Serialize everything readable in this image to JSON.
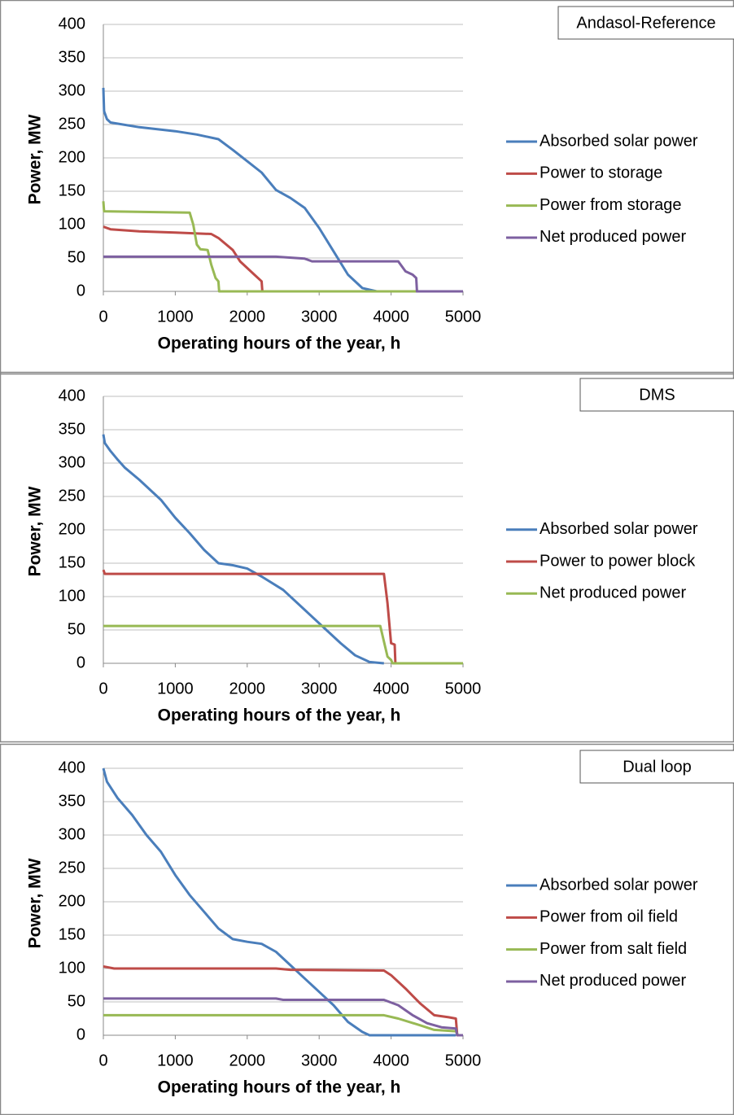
{
  "chart_data": [
    {
      "type": "line",
      "title": "Andasol-Reference",
      "ylabel": "Power, MW",
      "xlabel": "Operating hours of the year, h",
      "xlim": [
        0,
        5000
      ],
      "xticks": [
        0,
        1000,
        2000,
        3000,
        4000,
        5000
      ],
      "ylim": [
        0,
        400
      ],
      "yticks": [
        0,
        50,
        100,
        150,
        200,
        250,
        300,
        350,
        400
      ],
      "grid": true,
      "legend": "right",
      "series": [
        {
          "name": "Absorbed solar power",
          "color": "#4a7ebb",
          "x": [
            0,
            10,
            50,
            100,
            500,
            1000,
            1300,
            1600,
            1800,
            2000,
            2200,
            2300,
            2400,
            2600,
            2800,
            3000,
            3200,
            3400,
            3600,
            3800
          ],
          "values": [
            305,
            270,
            258,
            253,
            246,
            240,
            235,
            228,
            212,
            195,
            178,
            165,
            152,
            140,
            125,
            95,
            60,
            25,
            5,
            0
          ]
        },
        {
          "name": "Power to storage",
          "color": "#be4b48",
          "x": [
            0,
            100,
            500,
            1000,
            1500,
            1600,
            1800,
            1900,
            2100,
            2200,
            2210
          ],
          "values": [
            97,
            93,
            90,
            88,
            86,
            80,
            62,
            45,
            25,
            15,
            0
          ]
        },
        {
          "name": "Power from storage",
          "color": "#98b954",
          "x": [
            0,
            10,
            1200,
            1250,
            1300,
            1350,
            1450,
            1500,
            1560,
            1600,
            1610,
            5000
          ],
          "values": [
            135,
            120,
            118,
            100,
            70,
            63,
            62,
            40,
            20,
            15,
            0,
            0
          ]
        },
        {
          "name": "Net produced power",
          "color": "#7d60a0",
          "x": [
            0,
            2400,
            2800,
            2900,
            4100,
            4200,
            4300,
            4350,
            4360,
            5000
          ],
          "values": [
            52,
            52,
            49,
            45,
            45,
            30,
            25,
            20,
            0,
            0
          ]
        }
      ]
    },
    {
      "type": "line",
      "title": "DMS",
      "ylabel": "Power, MW",
      "xlabel": "Operating hours of the year, h",
      "xlim": [
        0,
        5000
      ],
      "xticks": [
        0,
        1000,
        2000,
        3000,
        4000,
        5000
      ],
      "ylim": [
        0,
        400
      ],
      "yticks": [
        0,
        50,
        100,
        150,
        200,
        250,
        300,
        350,
        400
      ],
      "grid": true,
      "legend": "right",
      "series": [
        {
          "name": "Absorbed solar power",
          "color": "#4a7ebb",
          "x": [
            0,
            20,
            100,
            200,
            300,
            500,
            800,
            1000,
            1200,
            1400,
            1600,
            1800,
            2000,
            2200,
            2500,
            2800,
            3100,
            3300,
            3500,
            3700,
            3900
          ],
          "values": [
            343,
            330,
            318,
            305,
            293,
            275,
            245,
            218,
            195,
            170,
            150,
            147,
            142,
            130,
            110,
            80,
            50,
            30,
            12,
            2,
            0
          ]
        },
        {
          "name": "Power to power block",
          "color": "#be4b48",
          "x": [
            0,
            20,
            3900,
            3950,
            4000,
            4050,
            4060,
            5000
          ],
          "values": [
            140,
            134,
            134,
            90,
            30,
            28,
            0,
            0
          ]
        },
        {
          "name": "Net produced power",
          "color": "#98b954",
          "x": [
            0,
            3850,
            3950,
            4000,
            4020,
            5000
          ],
          "values": [
            56,
            56,
            10,
            5,
            0,
            0
          ]
        }
      ]
    },
    {
      "type": "line",
      "title": "Dual loop",
      "ylabel": "Power, MW",
      "xlabel": "Operating hours of the year, h",
      "xlim": [
        0,
        5000
      ],
      "xticks": [
        0,
        1000,
        2000,
        3000,
        4000,
        5000
      ],
      "ylim": [
        0,
        400
      ],
      "yticks": [
        0,
        50,
        100,
        150,
        200,
        250,
        300,
        350,
        400
      ],
      "grid": true,
      "legend": "right",
      "series": [
        {
          "name": "Absorbed solar power",
          "color": "#4a7ebb",
          "x": [
            0,
            50,
            200,
            400,
            600,
            800,
            1000,
            1200,
            1400,
            1600,
            1800,
            2000,
            2200,
            2400,
            2600,
            2800,
            3000,
            3200,
            3400,
            3600,
            3700,
            4900
          ],
          "values": [
            400,
            380,
            355,
            330,
            300,
            275,
            240,
            210,
            185,
            160,
            144,
            140,
            137,
            125,
            105,
            85,
            65,
            45,
            20,
            5,
            0,
            0
          ]
        },
        {
          "name": "Power from oil field",
          "color": "#be4b48",
          "x": [
            0,
            150,
            2400,
            2600,
            3900,
            4000,
            4200,
            4400,
            4600,
            4800,
            4900,
            4920,
            5000
          ],
          "values": [
            103,
            100,
            100,
            98,
            97,
            90,
            70,
            48,
            30,
            27,
            25,
            0,
            0
          ]
        },
        {
          "name": "Power from salt field",
          "color": "#98b954",
          "x": [
            0,
            3900,
            4100,
            4400,
            4600,
            4900,
            4930,
            5000
          ],
          "values": [
            30,
            30,
            25,
            15,
            8,
            6,
            0,
            0
          ]
        },
        {
          "name": "Net produced power",
          "color": "#7d60a0",
          "x": [
            0,
            2400,
            2500,
            3900,
            4100,
            4300,
            4500,
            4700,
            4900,
            4920,
            5000
          ],
          "values": [
            55,
            55,
            53,
            53,
            45,
            30,
            18,
            12,
            10,
            0,
            0
          ]
        }
      ]
    }
  ]
}
